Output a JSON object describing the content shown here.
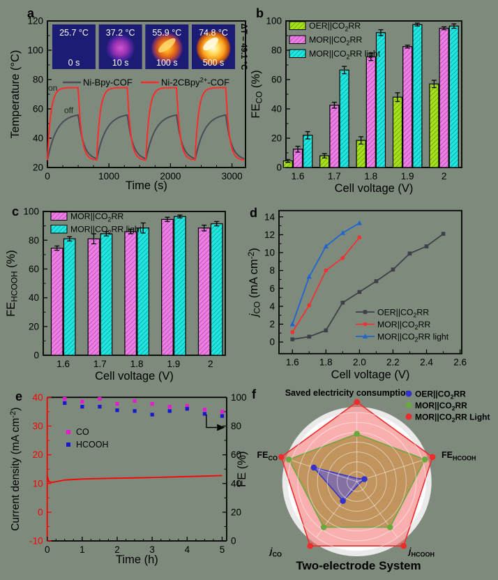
{
  "figure": {
    "background": "#7d8a7c",
    "foreground": "#000000"
  },
  "chart_data": [
    {
      "letter": "a",
      "type": "line",
      "xlabel": "Time (s)",
      "ylabel": "Temperature (°C)",
      "ylabel_tokens": [
        {
          "t": "Temperature (°C)"
        }
      ],
      "xlim": [
        0,
        3220
      ],
      "ylim": [
        20,
        120
      ],
      "xticks": [
        0,
        1000,
        2000,
        3000
      ],
      "yticks": [
        20,
        40,
        60,
        80,
        100,
        120
      ],
      "series": [
        {
          "name": "Ni-Bpy-COF",
          "color": "#4b4b57",
          "t_min": 25,
          "t_asym": 57,
          "tau_heat": 150,
          "tau_cool": 90,
          "label_tokens": [
            {
              "t": "Ni-Bpy-COF"
            }
          ]
        },
        {
          "name": "Ni-2CBpy2+-COF",
          "color": "#ff2a2a",
          "t_min": 25,
          "t_asym": 74.5,
          "tau_heat": 55,
          "tau_cool": 55,
          "label_tokens": [
            {
              "t": "Ni-2CBpy"
            },
            {
              "t": "2+",
              "sup": true
            },
            {
              "t": "-COF"
            }
          ]
        }
      ],
      "cycles": {
        "starts": [
          0,
          800,
          1600,
          2400
        ],
        "heat_s": 500,
        "cool_s": 300
      },
      "annotations": {
        "on": "on",
        "off": "off",
        "delta_t": "ΔT = 49.1 °C"
      },
      "insets": [
        {
          "temp": "25.7 °C",
          "time": "0 s",
          "blob": "none"
        },
        {
          "temp": "37.2 °C",
          "time": "10 s",
          "blob": "purple"
        },
        {
          "temp": "55.9 °C",
          "time": "100 s",
          "blob": "orange"
        },
        {
          "temp": "74.8 °C",
          "time": "500 s",
          "blob": "bright"
        }
      ]
    },
    {
      "letter": "b",
      "type": "bar",
      "xlabel": "Cell voltage (V)",
      "ylabel": "FE_CO (%)",
      "ylabel_tokens": [
        {
          "t": "FE"
        },
        {
          "t": "CO",
          "sub": true
        },
        {
          "t": " (%)"
        }
      ],
      "categories": [
        "1.6",
        "1.7",
        "1.8",
        "1.9",
        "2"
      ],
      "ylim": [
        0,
        100
      ],
      "yticks": [
        0,
        20,
        40,
        60,
        80,
        100
      ],
      "series": [
        {
          "name": "OER||CO₂RR",
          "color": "#a6e21c",
          "values": [
            4.5,
            8,
            18.5,
            48,
            57
          ],
          "errors": [
            1,
            1.5,
            2.5,
            3,
            2.5
          ],
          "label_tokens": [
            {
              "t": "OER||CO"
            },
            {
              "t": "2",
              "sub": true
            },
            {
              "t": "RR"
            }
          ]
        },
        {
          "name": "MOR||CO₂RR",
          "color": "#f07ce8",
          "values": [
            12.5,
            42.5,
            75.5,
            82.5,
            95
          ],
          "errors": [
            2,
            2,
            2.5,
            1,
            1
          ],
          "label_tokens": [
            {
              "t": "MOR||CO"
            },
            {
              "t": "2",
              "sub": true
            },
            {
              "t": "RR"
            }
          ]
        },
        {
          "name": "MOR||CO₂RR light",
          "color": "#1fe6e0",
          "values": [
            22,
            66.5,
            92,
            97.5,
            96.5
          ],
          "errors": [
            2.5,
            2.5,
            2,
            1,
            1.5
          ],
          "label_tokens": [
            {
              "t": "MOR||CO"
            },
            {
              "t": "2",
              "sub": true
            },
            {
              "t": "RR light"
            }
          ]
        }
      ]
    },
    {
      "letter": "c",
      "type": "bar",
      "xlabel": "Cell voltage (V)",
      "ylabel": "FE_HCOOH (%)",
      "ylabel_tokens": [
        {
          "t": "FE"
        },
        {
          "t": "HCOOH",
          "sub": true
        },
        {
          "t": " (%)"
        }
      ],
      "categories": [
        "1.6",
        "1.7",
        "1.8",
        "1.9",
        "2"
      ],
      "ylim": [
        0,
        100
      ],
      "yticks": [
        0,
        20,
        40,
        60,
        80,
        100
      ],
      "series": [
        {
          "name": "MOR||CO₂RR",
          "color": "#f07ce8",
          "values": [
            74.5,
            81,
            86,
            94.5,
            88.5
          ],
          "errors": [
            1.5,
            3.5,
            1.5,
            1.5,
            2
          ],
          "label_tokens": [
            {
              "t": "MOR||CO"
            },
            {
              "t": "2",
              "sub": true
            },
            {
              "t": "RR"
            }
          ]
        },
        {
          "name": "MOR||CO₂RR light",
          "color": "#1fe6e0",
          "values": [
            81,
            84.5,
            88.5,
            96.5,
            91.5
          ],
          "errors": [
            1.5,
            1.5,
            3.5,
            1,
            1.5
          ],
          "label_tokens": [
            {
              "t": "MOR||CO"
            },
            {
              "t": "2",
              "sub": true
            },
            {
              "t": "RR light"
            }
          ]
        }
      ]
    },
    {
      "letter": "d",
      "type": "line",
      "xlabel": "Cell voltage (V)",
      "ylabel": "j_CO (mA cm-2)",
      "ylabel_tokens": [
        {
          "t": "j",
          "i": true
        },
        {
          "t": "CO",
          "sub": true
        },
        {
          "t": " (mA cm"
        },
        {
          "t": "-2",
          "sup": true
        },
        {
          "t": ")"
        }
      ],
      "xlim": [
        1.52,
        2.61
      ],
      "ylim": [
        -1.3,
        14.7
      ],
      "xticks": [
        1.6,
        1.8,
        2.0,
        2.2,
        2.4,
        2.6
      ],
      "xtick_labels": [
        "1.6",
        "1.8",
        "2.0",
        "2.2",
        "2.4",
        "2.6"
      ],
      "yticks": [
        0,
        2,
        4,
        6,
        8,
        10,
        12,
        14
      ],
      "series": [
        {
          "name": "OER||CO₂RR",
          "color": "#3f3f49",
          "marker": "square",
          "x": [
            1.6,
            1.7,
            1.8,
            1.9,
            2.0,
            2.1,
            2.2,
            2.3,
            2.4,
            2.5
          ],
          "y": [
            0.3,
            0.6,
            1.3,
            4.4,
            5.6,
            6.8,
            8.1,
            9.9,
            10.7,
            12.1
          ],
          "label_tokens": [
            {
              "t": "OER||CO"
            },
            {
              "t": "2",
              "sub": true
            },
            {
              "t": "RR"
            }
          ]
        },
        {
          "name": "MOR||CO₂RR",
          "color": "#ef3333",
          "marker": "circle",
          "x": [
            1.6,
            1.7,
            1.8,
            1.9,
            2.0
          ],
          "y": [
            1.1,
            4.1,
            8.0,
            9.4,
            11.7
          ],
          "label_tokens": [
            {
              "t": "MOR||CO"
            },
            {
              "t": "2",
              "sub": true
            },
            {
              "t": "RR"
            }
          ]
        },
        {
          "name": "MOR||CO₂RR light",
          "color": "#1f64cf",
          "marker": "triangle",
          "x": [
            1.6,
            1.7,
            1.8,
            1.9,
            2.0
          ],
          "y": [
            2.0,
            7.3,
            10.7,
            12.2,
            13.3
          ],
          "label_tokens": [
            {
              "t": "MOR||CO"
            },
            {
              "t": "2",
              "sub": true
            },
            {
              "t": "RR light"
            }
          ]
        }
      ]
    },
    {
      "letter": "e",
      "type": "line-dual",
      "xlabel": "Time (h)",
      "y_left_label": "Current density (mA cm-2)",
      "y_left_tokens": [
        {
          "t": "Current density (mA cm"
        },
        {
          "t": "-2",
          "sup": true
        },
        {
          "t": ")"
        }
      ],
      "y_right_label": "FE (%)",
      "y_right_tokens": [
        {
          "t": "FE (%)"
        }
      ],
      "xlim": [
        0,
        5.13
      ],
      "y_left_lim": [
        -10,
        40
      ],
      "y_right_lim": [
        0,
        100
      ],
      "xticks": [
        0,
        1,
        2,
        3,
        4,
        5
      ],
      "y_left_ticks": [
        -10,
        0,
        10,
        20,
        30,
        40
      ],
      "y_right_ticks": [
        0,
        20,
        40,
        60,
        80,
        100
      ],
      "left_axis_color": "#ff0000",
      "current_series": {
        "name": "Current density",
        "color": "#ff0000",
        "points": [
          [
            0,
            12.6
          ],
          [
            0.05,
            10.6
          ],
          [
            0.15,
            10.4
          ],
          [
            0.5,
            11.2
          ],
          [
            1,
            11.55
          ],
          [
            1.5,
            11.7
          ],
          [
            2,
            11.85
          ],
          [
            2.5,
            11.95
          ],
          [
            3,
            12.1
          ],
          [
            3.5,
            12.25
          ],
          [
            4,
            12.4
          ],
          [
            4.5,
            12.55
          ],
          [
            5,
            12.75
          ]
        ]
      },
      "fe_series": [
        {
          "name": "CO",
          "color": "#e619cf",
          "times": [
            0.5,
            1,
            1.5,
            2,
            2.5,
            3,
            3.5,
            4,
            4.5,
            5
          ],
          "values": [
            99,
            97,
            99,
            95.5,
            97.5,
            95.5,
            93.5,
            94,
            91.5,
            90
          ]
        },
        {
          "name": "HCOOH",
          "color": "#1717cf",
          "times": [
            0.5,
            1,
            1.5,
            2,
            2.5,
            3,
            3.5,
            4,
            4.5,
            5
          ],
          "values": [
            96,
            93.5,
            93.5,
            91,
            90.5,
            88,
            90.5,
            92,
            88.5,
            87
          ]
        }
      ],
      "arrow": {
        "x_h": 4.55,
        "fe_from": 88,
        "fe_to": 79
      }
    },
    {
      "letter": "f",
      "type": "radar",
      "title": "Two-electrode System",
      "axes": [
        "Saved electricity consumption",
        "FE_HCOOH",
        "j_HCOOH",
        "j_CO",
        "FE_CO"
      ],
      "axes_tokens": [
        [
          {
            "t": "Saved electricity consumption"
          }
        ],
        [
          {
            "t": "FE"
          },
          {
            "t": "HCOOH",
            "sub": true
          }
        ],
        [
          {
            "t": "j",
            "i": true
          },
          {
            "t": "HCOOH",
            "sub": true
          }
        ],
        [
          {
            "t": "j",
            "i": true
          },
          {
            "t": "CO",
            "sub": true
          }
        ],
        [
          {
            "t": "FE"
          },
          {
            "t": "CO",
            "sub": true
          }
        ]
      ],
      "series": [
        {
          "name": "MOR||CO₂RR Light",
          "color": "#ee2b2b",
          "fill": "rgba(245,110,110,0.55)",
          "values": [
            1,
            1,
            1,
            1,
            1
          ],
          "label_tokens": [
            {
              "t": "MOR||CO"
            },
            {
              "t": "2",
              "sub": true
            },
            {
              "t": "RR Light"
            }
          ]
        },
        {
          "name": "MOR||CO₂RR",
          "color": "#6aa93c",
          "fill": "rgba(180,140,75,0.82)",
          "values": [
            0.6,
            0.9,
            0.71,
            0.71,
            0.9
          ],
          "label_tokens": [
            {
              "t": "MOR||CO"
            },
            {
              "t": "2",
              "sub": true
            },
            {
              "t": "RR"
            }
          ]
        },
        {
          "name": "OER||CO₂RR",
          "color": "#3333cc",
          "fill": "rgba(95,90,205,0.62)",
          "values": [
            0.04,
            0.1,
            0.04,
            0.3,
            0.57
          ],
          "label_tokens": [
            {
              "t": "OER||CO"
            },
            {
              "t": "2",
              "sub": true
            },
            {
              "t": "RR"
            }
          ]
        }
      ],
      "legend_order": [
        "OER||CO₂RR",
        "MOR||CO₂RR",
        "MOR||CO₂RR Light"
      ]
    }
  ]
}
